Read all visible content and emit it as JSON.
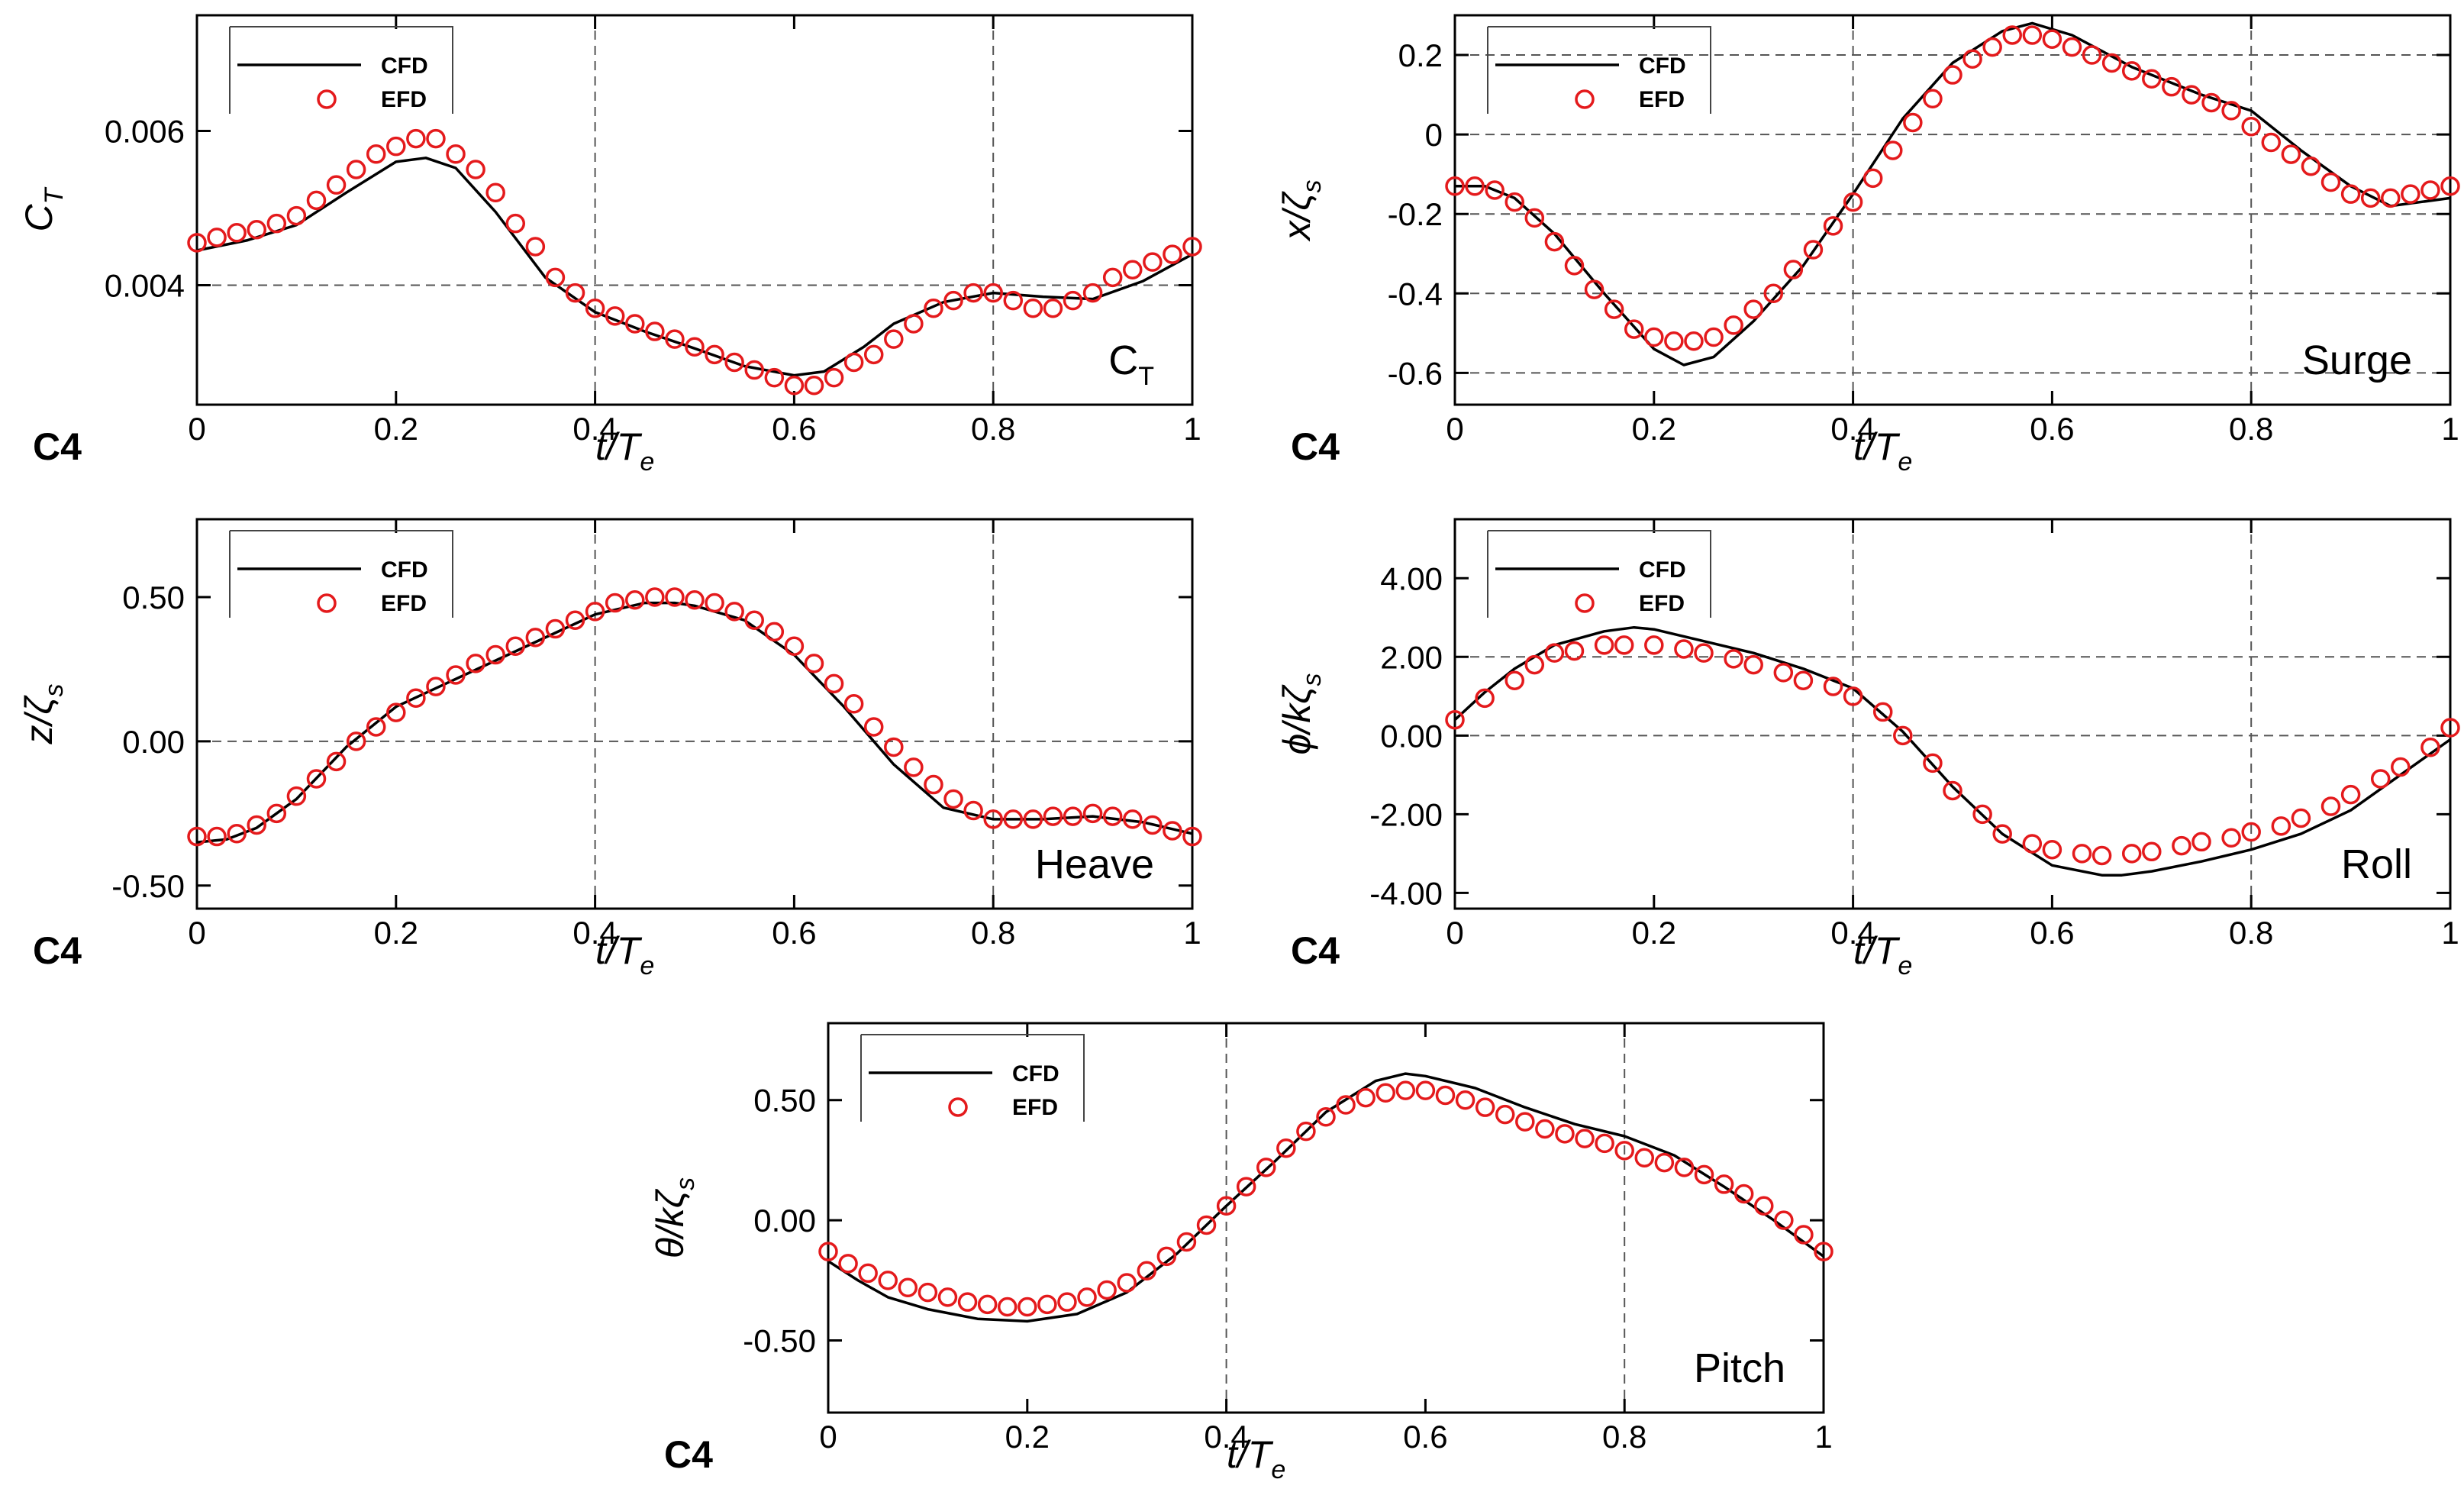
{
  "colors": {
    "cfd": "#000000",
    "efd": "#e41a1c",
    "grid": "#555555"
  },
  "chart_data": [
    {
      "id": "ct",
      "type": "line",
      "title": "",
      "panel_tag": "C4",
      "case_label": "C",
      "case_label_sub": "T",
      "xlabel": "t/T",
      "xlabel_sub": "e",
      "ylabel": "C",
      "ylabel_sub": "T",
      "xlim": [
        0,
        1
      ],
      "ylim": [
        0.00245,
        0.0075
      ],
      "xticks": [
        0,
        0.2,
        0.4,
        0.6,
        0.8,
        1
      ],
      "xtick_labels": [
        "0",
        "0.2",
        "0.4",
        "0.6",
        "0.8",
        "1"
      ],
      "yticks": [
        0.004,
        0.006
      ],
      "ytick_labels": [
        "0.004",
        "0.006"
      ],
      "ygrid": [
        0.004
      ],
      "xgrid": [
        0.4,
        0.8
      ],
      "legend": {
        "position": "top-left",
        "cfd_label": "CFD",
        "efd_label": "EFD"
      },
      "series": [
        {
          "name": "CFD",
          "style": "line",
          "x": [
            0,
            0.05,
            0.1,
            0.15,
            0.2,
            0.23,
            0.26,
            0.3,
            0.35,
            0.4,
            0.45,
            0.5,
            0.55,
            0.6,
            0.63,
            0.67,
            0.7,
            0.75,
            0.8,
            0.85,
            0.9,
            0.95,
            1
          ],
          "y": [
            0.00445,
            0.00458,
            0.00478,
            0.0052,
            0.0056,
            0.00565,
            0.00552,
            0.00495,
            0.0041,
            0.00365,
            0.0034,
            0.00318,
            0.00295,
            0.00283,
            0.00288,
            0.0032,
            0.0035,
            0.00378,
            0.0039,
            0.00385,
            0.00382,
            0.00405,
            0.0044
          ]
        },
        {
          "name": "EFD",
          "style": "markers",
          "x": [
            0,
            0.02,
            0.04,
            0.06,
            0.08,
            0.1,
            0.12,
            0.14,
            0.16,
            0.18,
            0.2,
            0.22,
            0.24,
            0.26,
            0.28,
            0.3,
            0.32,
            0.34,
            0.36,
            0.38,
            0.4,
            0.42,
            0.44,
            0.46,
            0.48,
            0.5,
            0.52,
            0.54,
            0.56,
            0.58,
            0.6,
            0.62,
            0.64,
            0.66,
            0.68,
            0.7,
            0.72,
            0.74,
            0.76,
            0.78,
            0.8,
            0.82,
            0.84,
            0.86,
            0.88,
            0.9,
            0.92,
            0.94,
            0.96,
            0.98,
            1
          ],
          "y": [
            0.00455,
            0.00462,
            0.00468,
            0.00472,
            0.0048,
            0.0049,
            0.0051,
            0.0053,
            0.0055,
            0.0057,
            0.0058,
            0.0059,
            0.0059,
            0.0057,
            0.0055,
            0.0052,
            0.0048,
            0.0045,
            0.0041,
            0.0039,
            0.0037,
            0.0036,
            0.0035,
            0.0034,
            0.0033,
            0.0032,
            0.0031,
            0.003,
            0.0029,
            0.0028,
            0.0027,
            0.0027,
            0.0028,
            0.003,
            0.0031,
            0.0033,
            0.0035,
            0.0037,
            0.0038,
            0.0039,
            0.0039,
            0.0038,
            0.0037,
            0.0037,
            0.0038,
            0.0039,
            0.0041,
            0.0042,
            0.0043,
            0.0044,
            0.0045
          ]
        }
      ]
    },
    {
      "id": "surge",
      "type": "line",
      "title": "",
      "panel_tag": "C4",
      "case_label": "Surge",
      "case_label_sub": "",
      "xlabel": "t/T",
      "xlabel_sub": "e",
      "ylabel": "x/ζ",
      "ylabel_sub": "s",
      "xlim": [
        0,
        1
      ],
      "ylim": [
        -0.68,
        0.3
      ],
      "xticks": [
        0,
        0.2,
        0.4,
        0.6,
        0.8,
        1
      ],
      "xtick_labels": [
        "0",
        "0.2",
        "0.4",
        "0.6",
        "0.8",
        "1"
      ],
      "yticks": [
        -0.6,
        -0.4,
        -0.2,
        0,
        0.2
      ],
      "ytick_labels": [
        "-0.6",
        "-0.4",
        "-0.2",
        "0",
        "0.2"
      ],
      "ygrid": [
        -0.6,
        -0.4,
        -0.2,
        0,
        0.2
      ],
      "xgrid": [
        0.4,
        0.8
      ],
      "legend": {
        "position": "top-left",
        "cfd_label": "CFD",
        "efd_label": "EFD"
      },
      "series": [
        {
          "name": "CFD",
          "style": "line",
          "x": [
            0,
            0.03,
            0.06,
            0.1,
            0.15,
            0.2,
            0.23,
            0.26,
            0.3,
            0.35,
            0.4,
            0.45,
            0.5,
            0.55,
            0.58,
            0.62,
            0.68,
            0.75,
            0.8,
            0.85,
            0.9,
            0.94,
            1
          ],
          "y": [
            -0.13,
            -0.13,
            -0.16,
            -0.25,
            -0.4,
            -0.54,
            -0.58,
            -0.56,
            -0.47,
            -0.33,
            -0.15,
            0.04,
            0.18,
            0.26,
            0.28,
            0.25,
            0.17,
            0.1,
            0.06,
            -0.04,
            -0.13,
            -0.18,
            -0.16
          ]
        },
        {
          "name": "EFD",
          "style": "markers",
          "x": [
            0,
            0.02,
            0.04,
            0.06,
            0.08,
            0.1,
            0.12,
            0.14,
            0.16,
            0.18,
            0.2,
            0.22,
            0.24,
            0.26,
            0.28,
            0.3,
            0.32,
            0.34,
            0.36,
            0.38,
            0.4,
            0.42,
            0.44,
            0.46,
            0.48,
            0.5,
            0.52,
            0.54,
            0.56,
            0.58,
            0.6,
            0.62,
            0.64,
            0.66,
            0.68,
            0.7,
            0.72,
            0.74,
            0.76,
            0.78,
            0.8,
            0.82,
            0.84,
            0.86,
            0.88,
            0.9,
            0.92,
            0.94,
            0.96,
            0.98,
            1
          ],
          "y": [
            -0.13,
            -0.13,
            -0.14,
            -0.17,
            -0.21,
            -0.27,
            -0.33,
            -0.39,
            -0.44,
            -0.49,
            -0.51,
            -0.52,
            -0.52,
            -0.51,
            -0.48,
            -0.44,
            -0.4,
            -0.34,
            -0.29,
            -0.23,
            -0.17,
            -0.11,
            -0.04,
            0.03,
            0.09,
            0.15,
            0.19,
            0.22,
            0.25,
            0.25,
            0.24,
            0.22,
            0.2,
            0.18,
            0.16,
            0.14,
            0.12,
            0.1,
            0.08,
            0.06,
            0.02,
            -0.02,
            -0.05,
            -0.08,
            -0.12,
            -0.15,
            -0.16,
            -0.16,
            -0.15,
            -0.14,
            -0.13
          ]
        }
      ]
    },
    {
      "id": "heave",
      "type": "line",
      "title": "",
      "panel_tag": "C4",
      "case_label": "Heave",
      "case_label_sub": "",
      "xlabel": "t/T",
      "xlabel_sub": "e",
      "ylabel": "z/ζ",
      "ylabel_sub": "s",
      "xlim": [
        0,
        1
      ],
      "ylim": [
        -0.58,
        0.77
      ],
      "xticks": [
        0,
        0.2,
        0.4,
        0.6,
        0.8,
        1
      ],
      "xtick_labels": [
        "0",
        "0.2",
        "0.4",
        "0.6",
        "0.8",
        "1"
      ],
      "yticks": [
        -0.5,
        0,
        0.5
      ],
      "ytick_labels": [
        "-0.50",
        "0.00",
        "0.50"
      ],
      "ygrid": [
        0
      ],
      "xgrid": [
        0.4,
        0.8
      ],
      "legend": {
        "position": "top-left",
        "cfd_label": "CFD",
        "efd_label": "EFD"
      },
      "series": [
        {
          "name": "CFD",
          "style": "line",
          "x": [
            0,
            0.03,
            0.06,
            0.1,
            0.15,
            0.2,
            0.25,
            0.3,
            0.35,
            0.4,
            0.45,
            0.48,
            0.5,
            0.55,
            0.6,
            0.65,
            0.7,
            0.75,
            0.8,
            0.85,
            0.9,
            0.95,
            1
          ],
          "y": [
            -0.35,
            -0.34,
            -0.3,
            -0.2,
            -0.02,
            0.12,
            0.2,
            0.28,
            0.36,
            0.44,
            0.48,
            0.48,
            0.47,
            0.42,
            0.3,
            0.12,
            -0.08,
            -0.23,
            -0.27,
            -0.27,
            -0.26,
            -0.28,
            -0.32
          ]
        },
        {
          "name": "EFD",
          "style": "markers",
          "x": [
            0,
            0.02,
            0.04,
            0.06,
            0.08,
            0.1,
            0.12,
            0.14,
            0.16,
            0.18,
            0.2,
            0.22,
            0.24,
            0.26,
            0.28,
            0.3,
            0.32,
            0.34,
            0.36,
            0.38,
            0.4,
            0.42,
            0.44,
            0.46,
            0.48,
            0.5,
            0.52,
            0.54,
            0.56,
            0.58,
            0.6,
            0.62,
            0.64,
            0.66,
            0.68,
            0.7,
            0.72,
            0.74,
            0.76,
            0.78,
            0.8,
            0.82,
            0.84,
            0.86,
            0.88,
            0.9,
            0.92,
            0.94,
            0.96,
            0.98,
            1
          ],
          "y": [
            -0.33,
            -0.33,
            -0.32,
            -0.29,
            -0.25,
            -0.19,
            -0.13,
            -0.07,
            0.0,
            0.05,
            0.1,
            0.15,
            0.19,
            0.23,
            0.27,
            0.3,
            0.33,
            0.36,
            0.39,
            0.42,
            0.45,
            0.48,
            0.49,
            0.5,
            0.5,
            0.49,
            0.48,
            0.45,
            0.42,
            0.38,
            0.33,
            0.27,
            0.2,
            0.13,
            0.05,
            -0.02,
            -0.09,
            -0.15,
            -0.2,
            -0.24,
            -0.27,
            -0.27,
            -0.27,
            -0.26,
            -0.26,
            -0.25,
            -0.26,
            -0.27,
            -0.29,
            -0.31,
            -0.33
          ]
        }
      ]
    },
    {
      "id": "roll",
      "type": "line",
      "title": "",
      "panel_tag": "C4",
      "case_label": "Roll",
      "case_label_sub": "",
      "xlabel": "t/T",
      "xlabel_sub": "e",
      "ylabel": "ϕ/kζ",
      "ylabel_sub": "s",
      "xlim": [
        0,
        1
      ],
      "ylim": [
        -4.4,
        5.5
      ],
      "xticks": [
        0,
        0.2,
        0.4,
        0.6,
        0.8,
        1
      ],
      "xtick_labels": [
        "0",
        "0.2",
        "0.4",
        "0.6",
        "0.8",
        "1"
      ],
      "yticks": [
        -4,
        -2,
        0,
        2,
        4
      ],
      "ytick_labels": [
        "-4.00",
        "-2.00",
        "0.00",
        "2.00",
        "4.00"
      ],
      "ygrid": [
        0,
        2
      ],
      "xgrid": [
        0.4,
        0.8
      ],
      "legend": {
        "position": "top-left",
        "cfd_label": "CFD",
        "efd_label": "EFD"
      },
      "series": [
        {
          "name": "CFD",
          "style": "line",
          "x": [
            0,
            0.03,
            0.06,
            0.1,
            0.15,
            0.18,
            0.2,
            0.25,
            0.3,
            0.35,
            0.4,
            0.45,
            0.5,
            0.55,
            0.6,
            0.65,
            0.67,
            0.7,
            0.75,
            0.8,
            0.85,
            0.9,
            0.95,
            1
          ],
          "y": [
            0.4,
            1.1,
            1.7,
            2.3,
            2.65,
            2.75,
            2.7,
            2.4,
            2.1,
            1.7,
            1.2,
            0.1,
            -1.3,
            -2.5,
            -3.3,
            -3.55,
            -3.55,
            -3.45,
            -3.2,
            -2.9,
            -2.5,
            -1.9,
            -1.0,
            -0.1
          ]
        },
        {
          "name": "EFD",
          "style": "markers",
          "x": [
            0,
            0.03,
            0.06,
            0.08,
            0.1,
            0.12,
            0.15,
            0.17,
            0.2,
            0.23,
            0.25,
            0.28,
            0.3,
            0.33,
            0.35,
            0.38,
            0.4,
            0.43,
            0.45,
            0.48,
            0.5,
            0.53,
            0.55,
            0.58,
            0.6,
            0.63,
            0.65,
            0.68,
            0.7,
            0.73,
            0.75,
            0.78,
            0.8,
            0.83,
            0.85,
            0.88,
            0.9,
            0.93,
            0.95,
            0.98,
            1
          ],
          "y": [
            0.4,
            0.95,
            1.4,
            1.8,
            2.1,
            2.15,
            2.3,
            2.3,
            2.3,
            2.2,
            2.1,
            1.95,
            1.8,
            1.6,
            1.4,
            1.25,
            1.0,
            0.6,
            0.0,
            -0.7,
            -1.4,
            -2.0,
            -2.5,
            -2.75,
            -2.9,
            -3.0,
            -3.05,
            -3.0,
            -2.95,
            -2.8,
            -2.7,
            -2.6,
            -2.45,
            -2.3,
            -2.1,
            -1.8,
            -1.5,
            -1.1,
            -0.8,
            -0.3,
            0.2
          ]
        }
      ]
    },
    {
      "id": "pitch",
      "type": "line",
      "title": "",
      "panel_tag": "C4",
      "case_label": "Pitch",
      "case_label_sub": "",
      "xlabel": "t/T",
      "xlabel_sub": "e",
      "ylabel": "θ/kζ",
      "ylabel_sub": "s",
      "xlim": [
        0,
        1
      ],
      "ylim": [
        -0.8,
        0.82
      ],
      "xticks": [
        0,
        0.2,
        0.4,
        0.6,
        0.8,
        1
      ],
      "xtick_labels": [
        "0",
        "0.2",
        "0.4",
        "0.6",
        "0.8",
        "1"
      ],
      "yticks": [
        -0.5,
        0,
        0.5
      ],
      "ytick_labels": [
        "-0.50",
        "0.00",
        "0.50"
      ],
      "ygrid": [],
      "xgrid": [
        0.4,
        0.8
      ],
      "legend": {
        "position": "top-left",
        "cfd_label": "CFD",
        "efd_label": "EFD"
      },
      "series": [
        {
          "name": "CFD",
          "style": "line",
          "x": [
            0,
            0.03,
            0.06,
            0.1,
            0.15,
            0.2,
            0.25,
            0.3,
            0.35,
            0.4,
            0.45,
            0.5,
            0.55,
            0.58,
            0.6,
            0.65,
            0.7,
            0.75,
            0.8,
            0.85,
            0.9,
            0.95,
            1
          ],
          "y": [
            -0.17,
            -0.25,
            -0.32,
            -0.37,
            -0.41,
            -0.42,
            -0.39,
            -0.3,
            -0.14,
            0.06,
            0.25,
            0.45,
            0.58,
            0.61,
            0.6,
            0.55,
            0.47,
            0.4,
            0.35,
            0.27,
            0.14,
            0.0,
            -0.15
          ]
        },
        {
          "name": "EFD",
          "style": "markers",
          "x": [
            0,
            0.02,
            0.04,
            0.06,
            0.08,
            0.1,
            0.12,
            0.14,
            0.16,
            0.18,
            0.2,
            0.22,
            0.24,
            0.26,
            0.28,
            0.3,
            0.32,
            0.34,
            0.36,
            0.38,
            0.4,
            0.42,
            0.44,
            0.46,
            0.48,
            0.5,
            0.52,
            0.54,
            0.56,
            0.58,
            0.6,
            0.62,
            0.64,
            0.66,
            0.68,
            0.7,
            0.72,
            0.74,
            0.76,
            0.78,
            0.8,
            0.82,
            0.84,
            0.86,
            0.88,
            0.9,
            0.92,
            0.94,
            0.96,
            0.98,
            1
          ],
          "y": [
            -0.13,
            -0.18,
            -0.22,
            -0.25,
            -0.28,
            -0.3,
            -0.32,
            -0.34,
            -0.35,
            -0.36,
            -0.36,
            -0.35,
            -0.34,
            -0.32,
            -0.29,
            -0.26,
            -0.21,
            -0.15,
            -0.09,
            -0.02,
            0.06,
            0.14,
            0.22,
            0.3,
            0.37,
            0.43,
            0.48,
            0.51,
            0.53,
            0.54,
            0.54,
            0.52,
            0.5,
            0.47,
            0.44,
            0.41,
            0.38,
            0.36,
            0.34,
            0.32,
            0.29,
            0.26,
            0.24,
            0.22,
            0.19,
            0.15,
            0.11,
            0.06,
            0.0,
            -0.06,
            -0.13
          ]
        }
      ]
    }
  ]
}
